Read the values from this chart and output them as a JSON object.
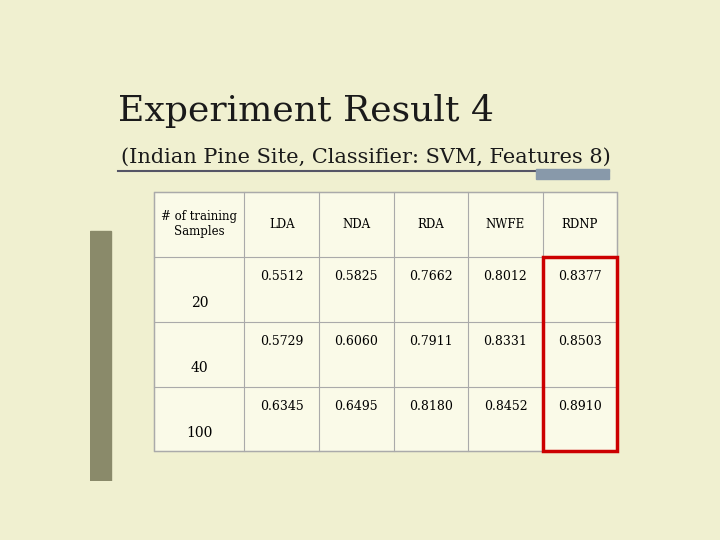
{
  "title": "Experiment Result 4",
  "subtitle": "(Indian Pine Site, Classifier: SVM, Features 8)",
  "slide_bg": "#f0f0d0",
  "header_row": [
    "# of training\nSamples",
    "LDA",
    "NDA",
    "RDA",
    "NWFE",
    "RDNP"
  ],
  "row_labels": [
    "20",
    "40",
    "100"
  ],
  "table_data": [
    [
      "0.5512",
      "0.5825",
      "0.7662",
      "0.8012",
      "0.8377"
    ],
    [
      "0.5729",
      "0.6060",
      "0.7911",
      "0.8331",
      "0.8503"
    ],
    [
      "0.6345",
      "0.6495",
      "0.8180",
      "0.8452",
      "0.8910"
    ]
  ],
  "highlight_color": "#cc0000",
  "text_color": "#000000",
  "title_color": "#1a1a1a",
  "line_color": "#555566",
  "accent_bar_color": "#8899aa",
  "left_bar_color": "#8a8a6a",
  "table_line_color": "#aaaaaa"
}
